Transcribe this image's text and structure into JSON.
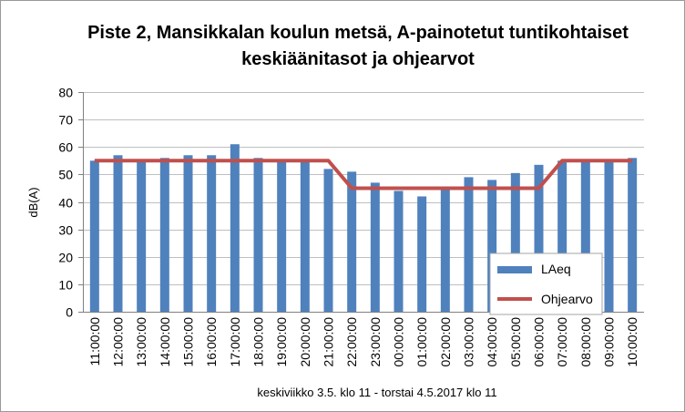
{
  "chart_data": {
    "type": "bar",
    "title_line1": "Piste 2, Mansikkalan koulun metsä, A-painotetut tuntikohtaiset",
    "title_line2": "keskiäänitasot ja ohjearvot",
    "xlabel": "keskiviikko 3.5. klo 11 - torstai 4.5.2017 klo 11",
    "ylabel": "dB(A)",
    "ylim": [
      0,
      80
    ],
    "yticks": [
      0,
      10,
      20,
      30,
      40,
      50,
      60,
      70,
      80
    ],
    "grid": true,
    "legend_position": "right",
    "categories": [
      "11:00:00",
      "12:00:00",
      "13:00:00",
      "14:00:00",
      "15:00:00",
      "16:00:00",
      "17:00:00",
      "18:00:00",
      "19:00:00",
      "20:00:00",
      "21:00:00",
      "22:00:00",
      "23:00:00",
      "00:00:00",
      "01:00:00",
      "02:00:00",
      "03:00:00",
      "04:00:00",
      "05:00:00",
      "06:00:00",
      "07:00:00",
      "08:00:00",
      "09:00:00",
      "10:00:00"
    ],
    "series": [
      {
        "name": "LAeq",
        "type": "bar",
        "color": "#4f81bd",
        "values": [
          55,
          57,
          55,
          56,
          57,
          57,
          61,
          56,
          55,
          55,
          52,
          51,
          47,
          44,
          42,
          45,
          49,
          48,
          50.5,
          53.5,
          55,
          55,
          55,
          56
        ]
      },
      {
        "name": "Ohjearvo",
        "type": "line",
        "color": "#c0504d",
        "values": [
          55,
          55,
          55,
          55,
          55,
          55,
          55,
          55,
          55,
          55,
          55,
          45,
          45,
          45,
          45,
          45,
          45,
          45,
          45,
          45,
          55,
          55,
          55,
          55
        ]
      }
    ]
  }
}
